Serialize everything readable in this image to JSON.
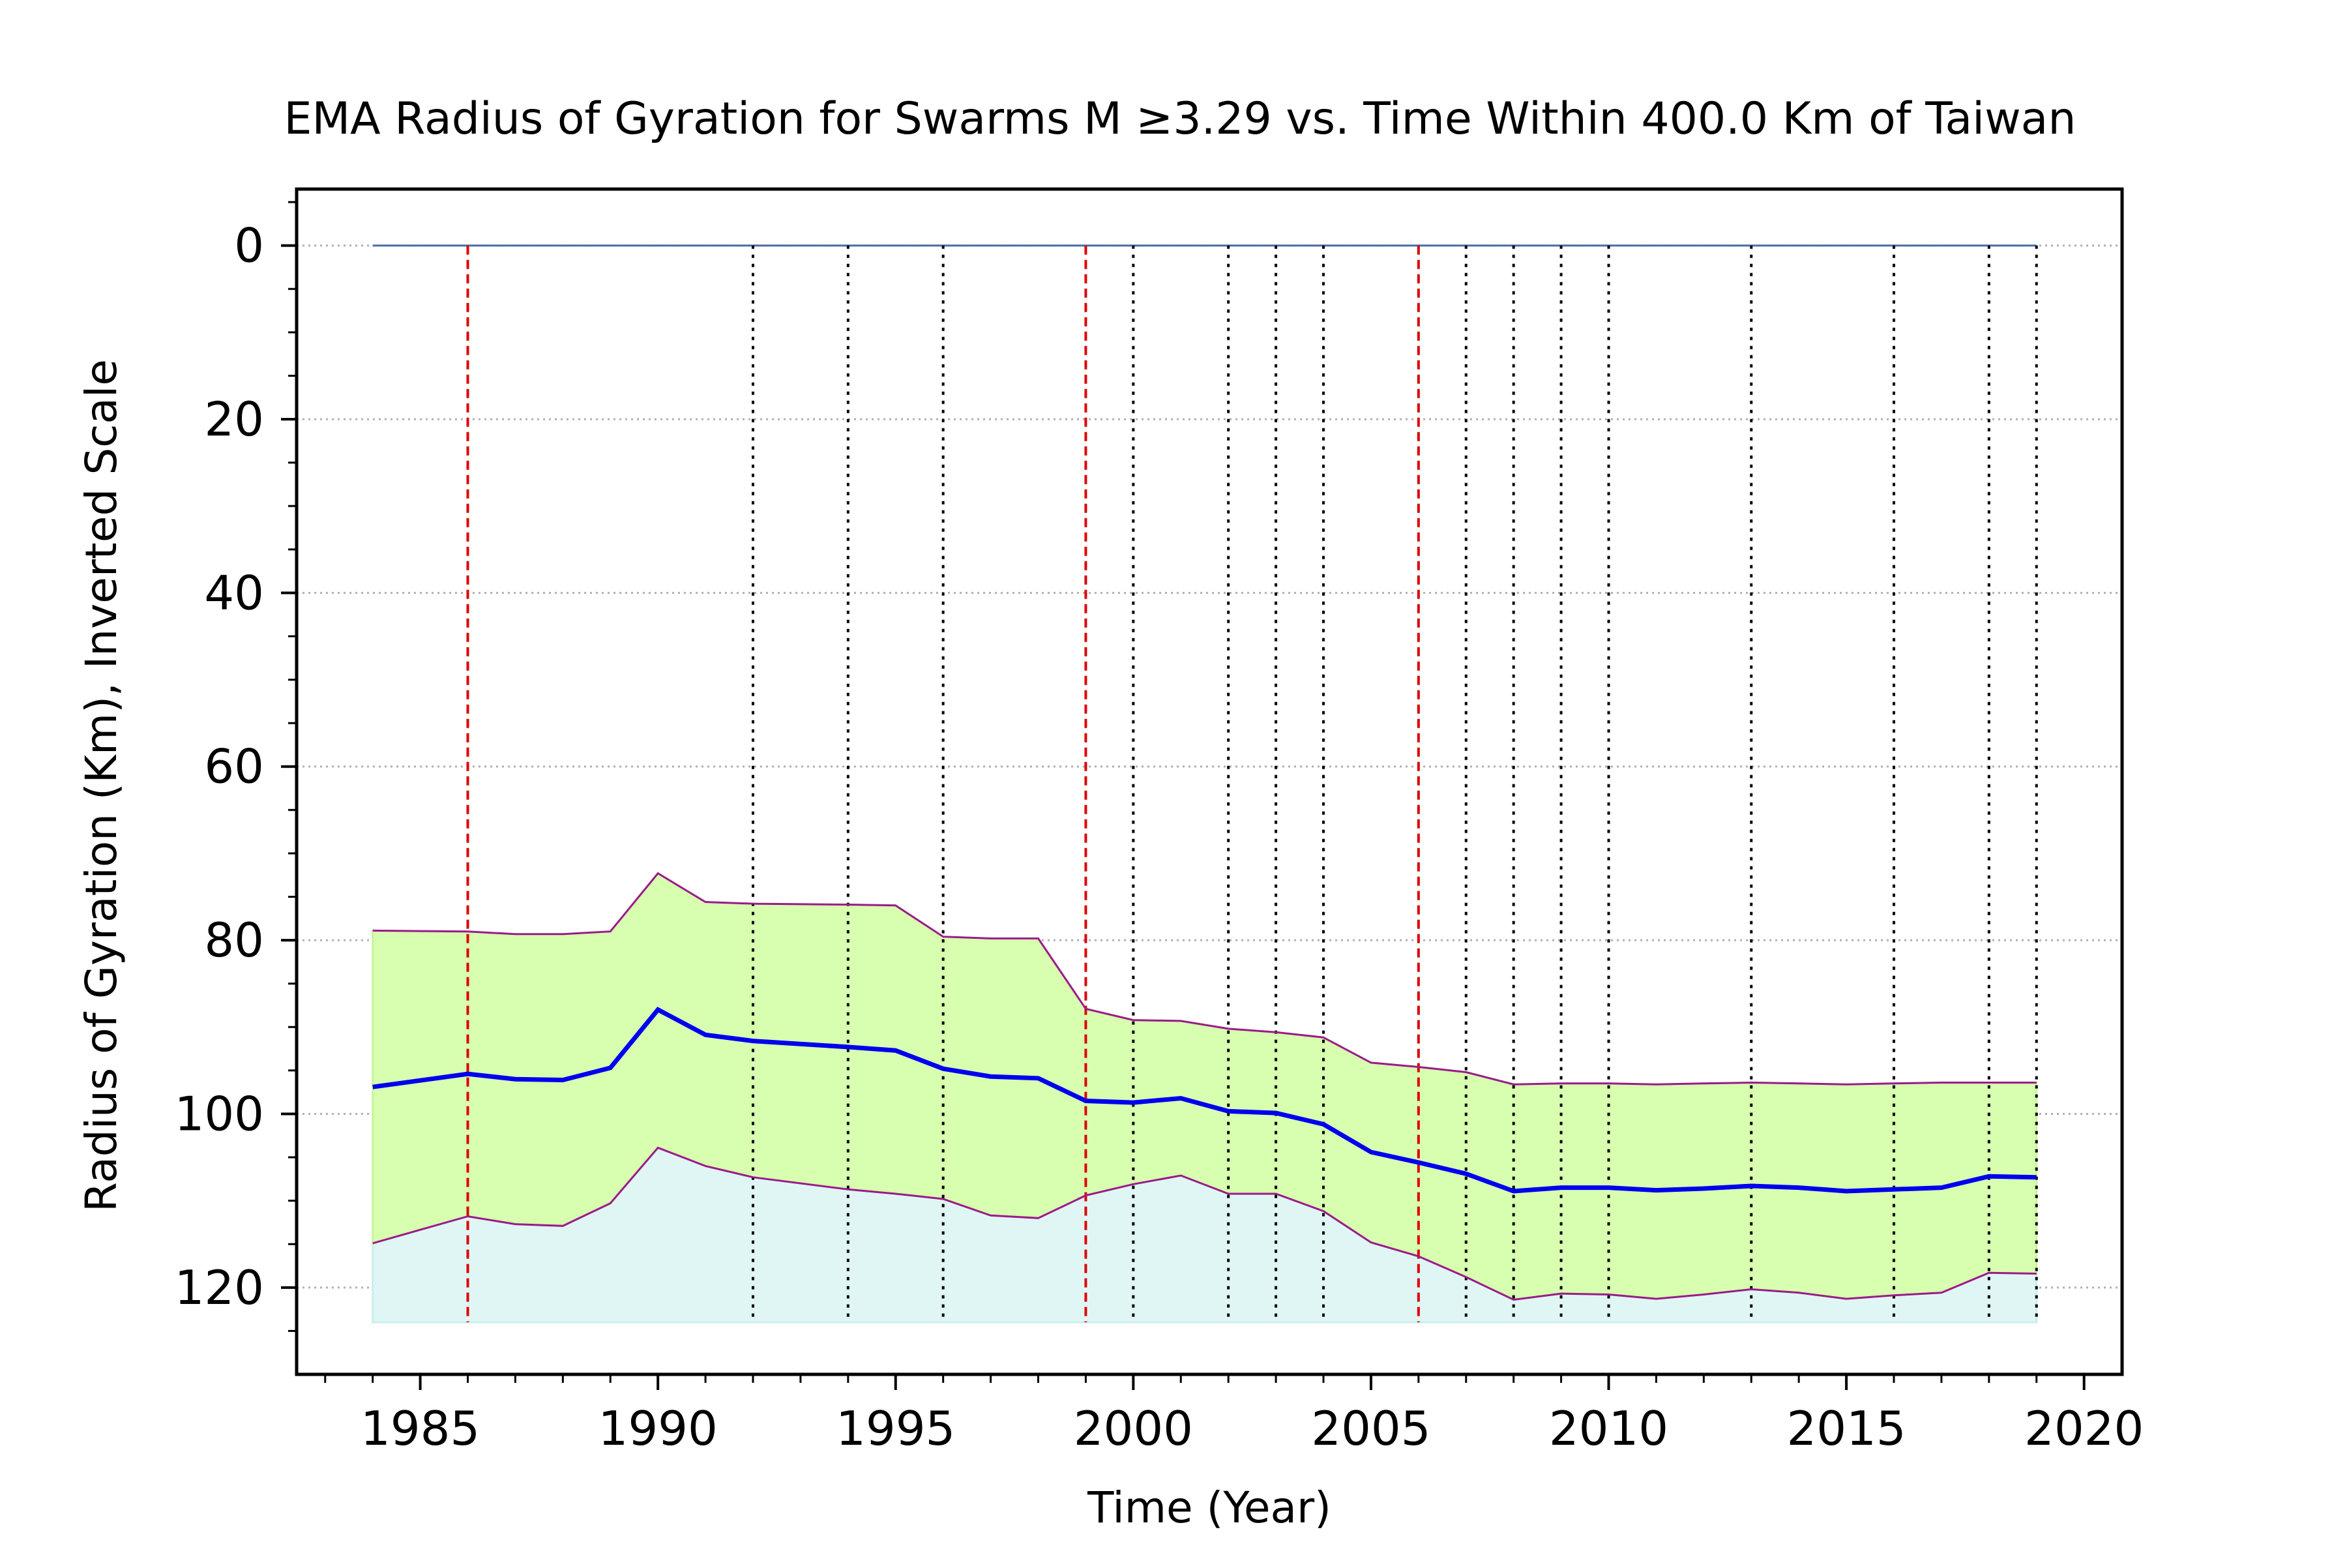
{
  "chart_data": {
    "type": "line",
    "title": "EMA Radius of Gyration for Swarms M $\\geq$3.29 vs. Time Within 400.0 Km of Taiwan",
    "title_display": "EMA Radius of Gyration for Swarms M  ≥3.29 vs. Time Within 400.0 Km of Taiwan",
    "xlabel": "Time (Year)",
    "ylabel": "Radius of Gyration (Km), Inverted Scale",
    "xlim": [
      1982.4,
      2020.8
    ],
    "ylim": [
      130,
      -6.5
    ],
    "y_inverted": true,
    "x_ticks": [
      1985,
      1990,
      1995,
      2000,
      2005,
      2010,
      2015,
      2020
    ],
    "x_tick_labels": [
      "1985",
      "1990",
      "1995",
      "2000",
      "2005",
      "2010",
      "2015",
      "2020"
    ],
    "y_ticks": [
      0,
      20,
      40,
      60,
      80,
      100,
      120
    ],
    "y_tick_labels": [
      "0",
      "20",
      "40",
      "60",
      "80",
      "100",
      "120"
    ],
    "grid": "horizontal-dotted",
    "x": [
      1984,
      1986,
      1987,
      1988,
      1989,
      1990,
      1991,
      1992,
      1994,
      1995,
      1996,
      1997,
      1998,
      1999,
      2000,
      2001,
      2002,
      2003,
      2004,
      2005,
      2006,
      2007,
      2008,
      2009,
      2010,
      2011,
      2012,
      2013,
      2014,
      2015,
      2016,
      2017,
      2018,
      2019
    ],
    "series": [
      {
        "role": "ema",
        "color": "#0000ee",
        "values": [
          96.9,
          95.4,
          96.0,
          96.1,
          94.7,
          88.0,
          90.9,
          91.6,
          92.3,
          92.7,
          94.8,
          95.7,
          95.9,
          98.5,
          98.7,
          98.2,
          99.7,
          99.9,
          101.2,
          104.4,
          105.6,
          106.9,
          108.9,
          108.5,
          108.5,
          108.8,
          108.6,
          108.3,
          108.5,
          108.9,
          108.7,
          108.5,
          107.2,
          107.3
        ]
      },
      {
        "role": "upper-band",
        "color": "#9b1b8b",
        "values": [
          78.9,
          79.0,
          79.3,
          79.3,
          79.0,
          72.3,
          75.6,
          75.8,
          75.9,
          76.0,
          79.6,
          79.8,
          79.8,
          87.9,
          89.2,
          89.3,
          90.2,
          90.6,
          91.2,
          94.1,
          94.6,
          95.2,
          96.6,
          96.5,
          96.5,
          96.6,
          96.5,
          96.4,
          96.5,
          96.6,
          96.5,
          96.4,
          96.4,
          96.4
        ]
      },
      {
        "role": "lower-band",
        "color": "#9b1b8b",
        "values": [
          114.9,
          111.8,
          112.7,
          112.9,
          110.3,
          103.9,
          106.0,
          107.3,
          108.7,
          109.2,
          109.8,
          111.7,
          112.0,
          109.4,
          108.1,
          107.1,
          109.2,
          109.2,
          111.2,
          114.8,
          116.4,
          118.8,
          121.4,
          120.7,
          120.8,
          121.3,
          120.8,
          120.2,
          120.6,
          121.3,
          120.9,
          120.6,
          118.3,
          118.4
        ]
      }
    ],
    "fill_between_bands_color": "#d8ffb0",
    "fill_below_lower_color": "#e0f6f5",
    "fill_floor": 124,
    "baseline": {
      "y": 0,
      "x_from": 1984,
      "x_to": 2019,
      "color": "#4a6fa5"
    },
    "event_lines": {
      "y_from": 0,
      "y_to": 124,
      "major_color": "#dd0000",
      "minor_color": "#000000",
      "major_years": [
        1986,
        1999,
        2006
      ],
      "minor_years": [
        1992,
        1994,
        1996,
        2000,
        2002,
        2003,
        2004,
        2007,
        2008,
        2009,
        2010,
        2013,
        2016,
        2018,
        2019
      ]
    }
  }
}
